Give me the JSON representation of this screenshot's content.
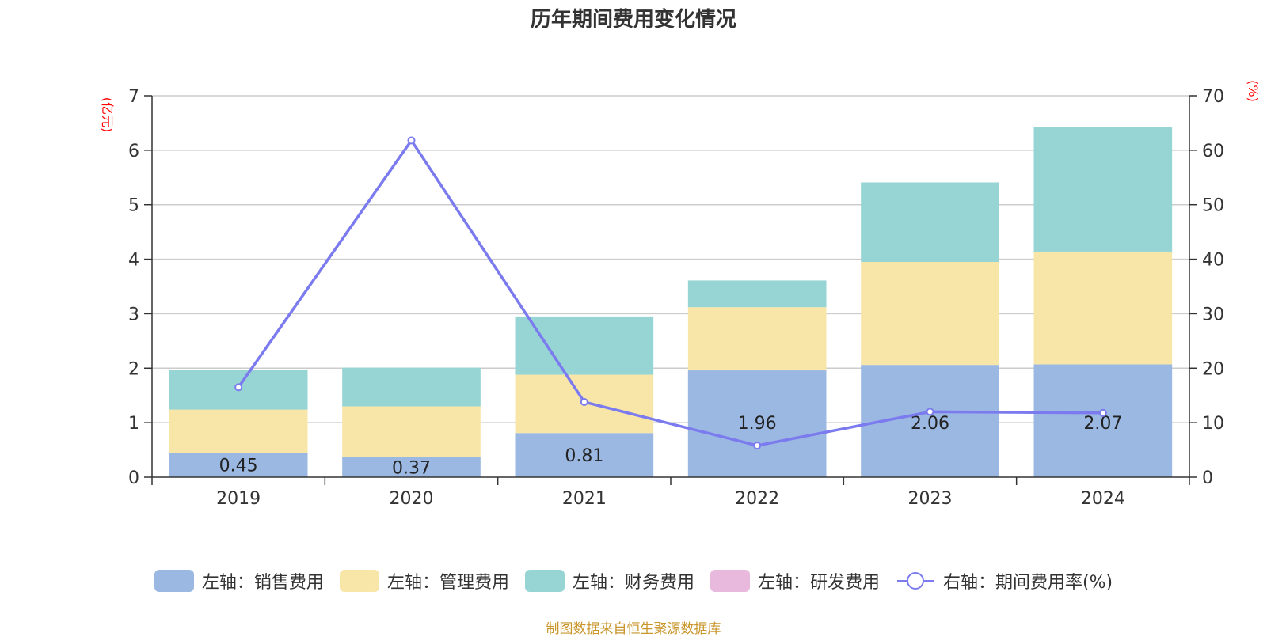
{
  "chart_data": {
    "type": "bar",
    "title": "历年期间费用变化情况",
    "categories": [
      "2019",
      "2020",
      "2021",
      "2022",
      "2023",
      "2024"
    ],
    "left_axis": {
      "unit_label": "(亿元)",
      "ylim": [
        0,
        7
      ],
      "ticks": [
        "0",
        "1",
        "2",
        "3",
        "4",
        "5",
        "6",
        "7"
      ]
    },
    "right_axis": {
      "unit_label": "(%)",
      "ylim": [
        0,
        70
      ],
      "ticks": [
        "0",
        "10",
        "20",
        "30",
        "40",
        "50",
        "60",
        "70"
      ]
    },
    "series": [
      {
        "name": "左轴：销售费用",
        "axis": "left",
        "stacked": true,
        "color": "#9bb8e2",
        "values": [
          0.45,
          0.37,
          0.81,
          1.96,
          2.06,
          2.07
        ],
        "labels": [
          "0.45",
          "0.37",
          "0.81",
          "1.96",
          "2.06",
          "2.07"
        ]
      },
      {
        "name": "左轴：管理费用",
        "axis": "left",
        "stacked": true,
        "color": "#f8e6a9",
        "values": [
          0.79,
          0.93,
          1.07,
          1.16,
          1.89,
          2.07
        ]
      },
      {
        "name": "左轴：财务费用",
        "axis": "left",
        "stacked": true,
        "color": "#97d4d4",
        "values": [
          0.73,
          0.71,
          1.07,
          0.49,
          1.46,
          2.29
        ]
      },
      {
        "name": "左轴：研发费用",
        "axis": "left",
        "stacked": true,
        "color": "#e8b9dc",
        "values": [
          0,
          0,
          0,
          0,
          0,
          0
        ]
      },
      {
        "name": "右轴：期间费用率(%)",
        "axis": "right",
        "type": "line",
        "color": "#7b7bef",
        "values": [
          16.5,
          61.8,
          13.8,
          5.8,
          12.0,
          11.8
        ]
      }
    ]
  },
  "source": "制图数据来自恒生聚源数据库"
}
